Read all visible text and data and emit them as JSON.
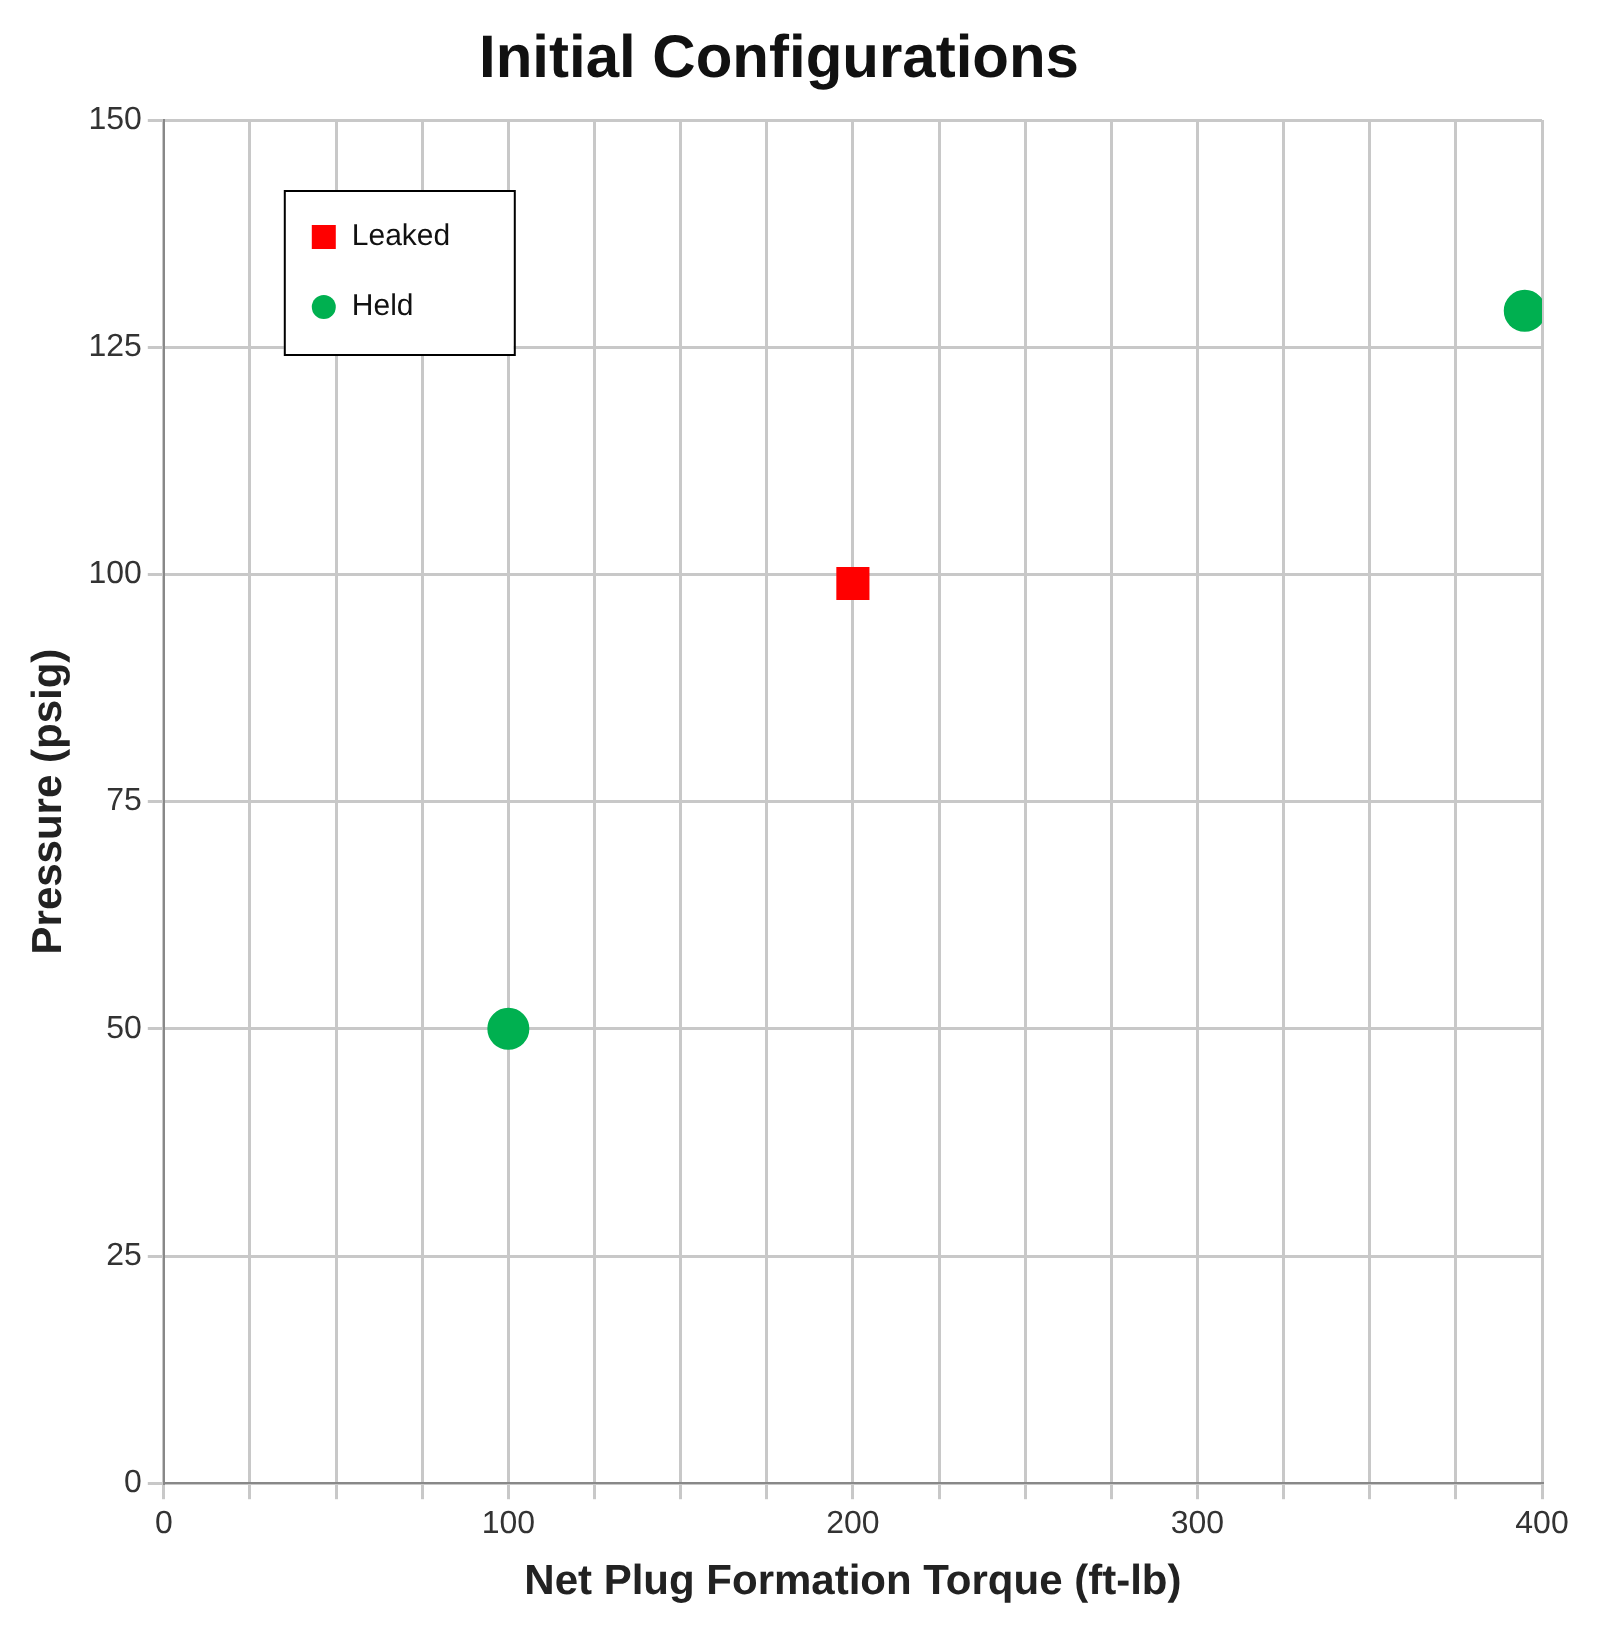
{
  "chart_data": {
    "type": "scatter",
    "title": "Initial Configurations",
    "xlabel": "Net Plug Formation Torque (ft-lb)",
    "ylabel": "Pressure (psig)",
    "series": [
      {
        "name": "Leaked",
        "color": "#ff0000",
        "marker": "square",
        "x": [
          200
        ],
        "values": [
          99
        ]
      },
      {
        "name": "Held",
        "color": "#00b050",
        "marker": "circle",
        "x": [
          100,
          395
        ],
        "values": [
          50,
          129
        ]
      }
    ],
    "xlim": [
      0,
      400
    ],
    "xticks": [
      0,
      {
        "value": 25,
        "label": null
      },
      {
        "value": 50,
        "label": null
      },
      {
        "value": 75,
        "label": null
      },
      100,
      {
        "value": 125,
        "label": null
      },
      {
        "value": 150,
        "label": null
      },
      {
        "value": 175,
        "label": null
      },
      200,
      {
        "value": 225,
        "label": null
      },
      {
        "value": 250,
        "label": null
      },
      {
        "value": 275,
        "label": null
      },
      300,
      {
        "value": 325,
        "label": null
      },
      {
        "value": 350,
        "label": null
      },
      {
        "value": 375,
        "label": null
      },
      400
    ],
    "ylim": [
      0,
      150
    ],
    "yticks": [
      0,
      25,
      50,
      75,
      100,
      125,
      150
    ],
    "grid": true,
    "legend": "top left"
  }
}
